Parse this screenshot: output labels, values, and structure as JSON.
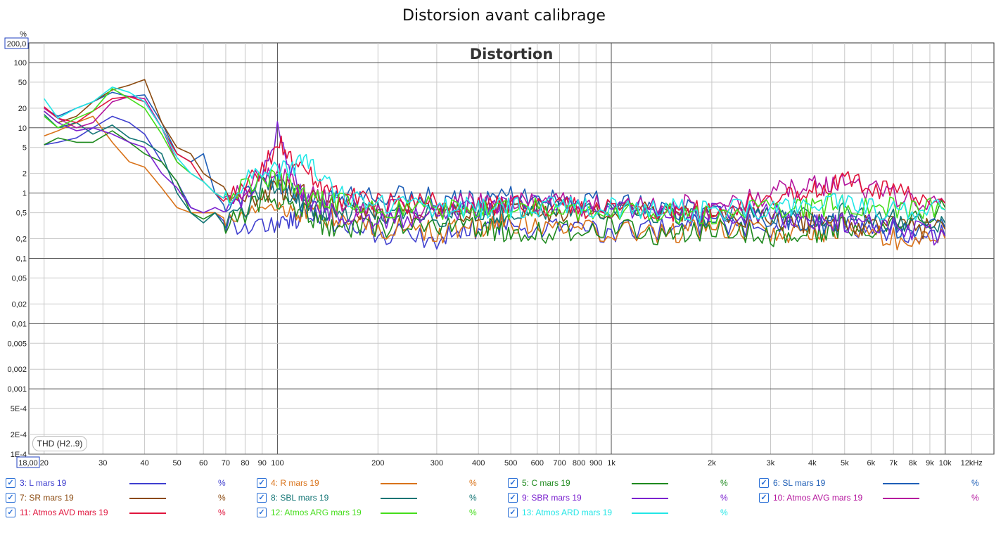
{
  "title": "Distorsion avant calibrage",
  "thd_label": "THD (H2..9)",
  "chart_data": {
    "type": "line",
    "title": "Distortion",
    "xscale": "log",
    "yscale": "log",
    "xlim": [
      18,
      14000
    ],
    "ylim": [
      0.0001,
      200
    ],
    "x_unit_label": "kHz",
    "y_unit_label": "%",
    "y_top_value": "200,0",
    "x_left_value": "18,00",
    "x_ticks": [
      {
        "v": 20,
        "t": "20"
      },
      {
        "v": 30,
        "t": "30"
      },
      {
        "v": 40,
        "t": "40"
      },
      {
        "v": 50,
        "t": "50"
      },
      {
        "v": 60,
        "t": "60"
      },
      {
        "v": 70,
        "t": "70"
      },
      {
        "v": 80,
        "t": "80"
      },
      {
        "v": 90,
        "t": "90"
      },
      {
        "v": 100,
        "t": "100"
      },
      {
        "v": 200,
        "t": "200"
      },
      {
        "v": 300,
        "t": "300"
      },
      {
        "v": 400,
        "t": "400"
      },
      {
        "v": 500,
        "t": "500"
      },
      {
        "v": 600,
        "t": "600"
      },
      {
        "v": 700,
        "t": "700"
      },
      {
        "v": 800,
        "t": "800"
      },
      {
        "v": 900,
        "t": "900"
      },
      {
        "v": 1000,
        "t": "1k"
      },
      {
        "v": 2000,
        "t": "2k"
      },
      {
        "v": 3000,
        "t": "3k"
      },
      {
        "v": 4000,
        "t": "4k"
      },
      {
        "v": 5000,
        "t": "5k"
      },
      {
        "v": 6000,
        "t": "6k"
      },
      {
        "v": 7000,
        "t": "7k"
      },
      {
        "v": 8000,
        "t": "8k"
      },
      {
        "v": 9000,
        "t": "9k"
      },
      {
        "v": 10000,
        "t": "10k"
      },
      {
        "v": 12000,
        "t": "12kHz"
      }
    ],
    "y_ticks": [
      {
        "v": 100,
        "t": "100"
      },
      {
        "v": 50,
        "t": "50"
      },
      {
        "v": 20,
        "t": "20"
      },
      {
        "v": 10,
        "t": "10"
      },
      {
        "v": 5,
        "t": "5"
      },
      {
        "v": 2,
        "t": "2"
      },
      {
        "v": 1,
        "t": "1"
      },
      {
        "v": 0.5,
        "t": "0,5"
      },
      {
        "v": 0.2,
        "t": "0,2"
      },
      {
        "v": 0.1,
        "t": "0,1"
      },
      {
        "v": 0.05,
        "t": "0,05"
      },
      {
        "v": 0.02,
        "t": "0,02"
      },
      {
        "v": 0.01,
        "t": "0,01"
      },
      {
        "v": 0.005,
        "t": "0,005"
      },
      {
        "v": 0.002,
        "t": "0,002"
      },
      {
        "v": 0.001,
        "t": "0,001"
      },
      {
        "v": 0.0005,
        "t": "5E-4"
      },
      {
        "v": 0.0002,
        "t": "2E-4"
      },
      {
        "v": 0.0001,
        "t": "1E-4"
      }
    ],
    "series": [
      {
        "name": "3: L mars 19",
        "color": "#3f3fcf",
        "x": [
          20,
          22,
          25,
          28,
          32,
          36,
          40,
          45,
          50,
          55,
          60,
          65,
          70,
          80,
          90,
          100,
          120,
          150,
          200,
          300,
          400,
          500,
          700,
          1000,
          1500,
          2000,
          3000,
          4000,
          5000,
          7000,
          10000
        ],
        "y": [
          5.5,
          6,
          7,
          10,
          15,
          12,
          8,
          3,
          1.5,
          0.6,
          0.5,
          0.5,
          0.35,
          0.3,
          0.35,
          0.32,
          0.45,
          0.35,
          0.25,
          0.2,
          0.3,
          0.3,
          0.3,
          0.25,
          0.3,
          0.35,
          0.3,
          0.35,
          0.3,
          0.25,
          0.22
        ]
      },
      {
        "name": "4: R mars 19",
        "color": "#d9731a",
        "x": [
          20,
          22,
          25,
          28,
          32,
          36,
          40,
          45,
          50,
          55,
          60,
          65,
          70,
          80,
          90,
          100,
          120,
          150,
          200,
          300,
          400,
          500,
          700,
          1000,
          1500,
          2000,
          3000,
          4000,
          5000,
          7000,
          10000
        ],
        "y": [
          7.5,
          9,
          12,
          15,
          6,
          3,
          2.5,
          1.2,
          0.6,
          0.5,
          0.5,
          0.5,
          0.4,
          0.5,
          0.7,
          0.6,
          0.5,
          0.4,
          0.3,
          0.25,
          0.3,
          0.35,
          0.3,
          0.25,
          0.25,
          0.3,
          0.25,
          0.25,
          0.3,
          0.2,
          0.2
        ]
      },
      {
        "name": "5: C mars 19",
        "color": "#1f8a1f",
        "x": [
          20,
          22,
          25,
          28,
          32,
          36,
          40,
          45,
          50,
          55,
          60,
          65,
          70,
          80,
          90,
          100,
          120,
          150,
          200,
          300,
          400,
          500,
          700,
          1000,
          1500,
          2000,
          3000,
          4000,
          5000,
          7000,
          10000
        ],
        "y": [
          5.5,
          7,
          6,
          6,
          9,
          6,
          4,
          3,
          1.5,
          0.5,
          0.4,
          0.5,
          0.3,
          0.5,
          0.8,
          0.8,
          0.5,
          0.25,
          0.3,
          0.35,
          0.3,
          0.25,
          0.25,
          0.3,
          0.22,
          0.3,
          0.22,
          0.25,
          0.3,
          0.3,
          0.6
        ]
      },
      {
        "name": "6: SL mars 19",
        "color": "#1f5fb7",
        "x": [
          20,
          22,
          25,
          28,
          32,
          36,
          40,
          45,
          50,
          55,
          60,
          65,
          70,
          80,
          90,
          100,
          120,
          150,
          200,
          300,
          400,
          500,
          700,
          1000,
          1500,
          2000,
          3000,
          4000,
          5000,
          7000,
          10000
        ],
        "y": [
          20,
          15,
          20,
          25,
          35,
          30,
          32,
          12,
          4,
          3,
          4,
          1,
          0.6,
          1,
          1.5,
          1.5,
          0.7,
          0.8,
          1,
          0.8,
          0.7,
          0.9,
          0.8,
          0.7,
          0.6,
          0.5,
          0.4,
          0.35,
          0.35,
          0.3,
          0.3
        ]
      },
      {
        "name": "7: SR mars 19",
        "color": "#8b4a10",
        "x": [
          20,
          22,
          25,
          28,
          32,
          36,
          40,
          45,
          50,
          55,
          60,
          65,
          70,
          80,
          90,
          100,
          120,
          150,
          200,
          300,
          400,
          500,
          700,
          1000,
          1500,
          2000,
          3000,
          4000,
          5000,
          7000,
          10000
        ],
        "y": [
          18,
          12,
          15,
          25,
          38,
          45,
          55,
          12,
          5,
          4,
          2,
          1.5,
          1.2,
          0.8,
          0.9,
          1.2,
          1,
          0.6,
          0.5,
          0.5,
          0.5,
          0.6,
          0.5,
          0.55,
          0.5,
          0.45,
          0.4,
          0.35,
          0.35,
          0.3,
          0.28
        ]
      },
      {
        "name": "8: SBL mars 19",
        "color": "#137575",
        "x": [
          20,
          22,
          25,
          28,
          32,
          36,
          40,
          45,
          50,
          55,
          60,
          65,
          70,
          80,
          90,
          100,
          120,
          150,
          200,
          300,
          400,
          500,
          700,
          1000,
          1500,
          2000,
          3000,
          4000,
          5000,
          7000,
          10000
        ],
        "y": [
          16,
          10,
          12,
          8,
          11,
          7,
          6,
          4,
          1,
          0.5,
          0.35,
          0.5,
          0.3,
          0.6,
          1.2,
          1.5,
          0.6,
          0.5,
          0.5,
          0.45,
          0.5,
          0.5,
          0.6,
          0.5,
          0.5,
          0.45,
          0.5,
          0.45,
          0.5,
          0.4,
          0.35
        ]
      },
      {
        "name": "9: SBR mars 19",
        "color": "#7b22cf",
        "x": [
          20,
          22,
          25,
          28,
          32,
          36,
          40,
          45,
          50,
          55,
          60,
          65,
          70,
          80,
          90,
          100,
          120,
          150,
          200,
          300,
          400,
          500,
          700,
          1000,
          1500,
          2000,
          3000,
          4000,
          5000,
          7000,
          10000
        ],
        "y": [
          18,
          12,
          9,
          10,
          8,
          6,
          5,
          2,
          1.2,
          0.6,
          0.5,
          0.6,
          0.5,
          1,
          1.5,
          9,
          0.8,
          0.5,
          0.4,
          0.5,
          0.6,
          0.7,
          0.8,
          0.6,
          0.6,
          0.5,
          0.45,
          0.4,
          0.35,
          0.3,
          0.22
        ]
      },
      {
        "name": "10: Atmos AVG mars 19",
        "color": "#b5179e",
        "x": [
          20,
          22,
          25,
          28,
          32,
          36,
          40,
          45,
          50,
          55,
          60,
          65,
          70,
          80,
          90,
          100,
          120,
          150,
          200,
          300,
          400,
          500,
          700,
          1000,
          1500,
          2000,
          3000,
          4000,
          5000,
          7000,
          10000
        ],
        "y": [
          20,
          14,
          10,
          12,
          25,
          30,
          28,
          10,
          3,
          2,
          1.5,
          1,
          0.8,
          1,
          2,
          2,
          1,
          0.7,
          0.6,
          0.6,
          0.7,
          0.7,
          0.7,
          0.6,
          0.7,
          0.6,
          1,
          1.3,
          1.4,
          0.9,
          0.7
        ]
      },
      {
        "name": "11: Atmos AVD mars 19",
        "color": "#e0143c",
        "x": [
          20,
          22,
          25,
          28,
          32,
          36,
          40,
          45,
          50,
          55,
          60,
          65,
          70,
          80,
          90,
          100,
          120,
          150,
          200,
          300,
          400,
          500,
          700,
          1000,
          1500,
          2000,
          3000,
          4000,
          5000,
          7000,
          10000
        ],
        "y": [
          21,
          14,
          12,
          18,
          28,
          30,
          25,
          10,
          4,
          3,
          1.5,
          1,
          0.7,
          1.5,
          2,
          6,
          2,
          0.9,
          0.7,
          0.7,
          0.6,
          0.7,
          0.6,
          0.6,
          0.55,
          0.5,
          0.9,
          1.2,
          1.5,
          1,
          0.7
        ]
      },
      {
        "name": "12: Atmos ARG mars 19",
        "color": "#44dd1a",
        "x": [
          20,
          22,
          25,
          28,
          32,
          36,
          40,
          45,
          50,
          55,
          60,
          65,
          70,
          80,
          90,
          100,
          120,
          150,
          200,
          300,
          400,
          500,
          700,
          1000,
          1500,
          2000,
          3000,
          4000,
          5000,
          7000,
          10000
        ],
        "y": [
          15,
          10,
          14,
          18,
          40,
          28,
          20,
          8,
          3,
          2,
          1.5,
          1,
          0.8,
          1.3,
          1.5,
          1.8,
          1,
          0.7,
          0.6,
          0.6,
          0.5,
          0.6,
          0.6,
          0.5,
          0.5,
          0.5,
          0.6,
          0.6,
          0.7,
          0.6,
          0.55
        ]
      },
      {
        "name": "13: Atmos ARD mars 19",
        "color": "#22e6e6",
        "x": [
          20,
          22,
          25,
          28,
          32,
          36,
          40,
          45,
          50,
          55,
          60,
          65,
          70,
          80,
          90,
          100,
          120,
          150,
          200,
          300,
          400,
          500,
          700,
          1000,
          1500,
          2000,
          3000,
          4000,
          5000,
          7000,
          10000
        ],
        "y": [
          28,
          14,
          20,
          25,
          42,
          35,
          25,
          10,
          3.5,
          2,
          1.5,
          1,
          0.8,
          1.5,
          2,
          2.2,
          3,
          1,
          0.7,
          0.6,
          0.6,
          0.6,
          0.6,
          0.6,
          0.6,
          0.5,
          0.6,
          0.6,
          0.7,
          0.55,
          0.55
        ]
      }
    ]
  },
  "legend": [
    {
      "label": "3: L mars 19",
      "unit": "%",
      "color": "#3f3fcf",
      "checked": "✓"
    },
    {
      "label": "4: R mars 19",
      "unit": "%",
      "color": "#d9731a",
      "checked": "✓"
    },
    {
      "label": "5: C mars 19",
      "unit": "%",
      "color": "#1f8a1f",
      "checked": "✓"
    },
    {
      "label": "6: SL mars 19",
      "unit": "%",
      "color": "#1f5fb7",
      "checked": "✓"
    },
    {
      "label": "7: SR mars 19",
      "unit": "%",
      "color": "#8b4a10",
      "checked": "✓"
    },
    {
      "label": "8: SBL mars 19",
      "unit": "%",
      "color": "#137575",
      "checked": "✓"
    },
    {
      "label": "9: SBR mars 19",
      "unit": "%",
      "color": "#7b22cf",
      "checked": "✓"
    },
    {
      "label": "10: Atmos AVG mars 19",
      "unit": "%",
      "color": "#b5179e",
      "checked": "✓"
    },
    {
      "label": "11: Atmos AVD mars 19",
      "unit": "%",
      "color": "#e0143c",
      "checked": "✓"
    },
    {
      "label": "12: Atmos ARG mars 19",
      "unit": "%",
      "color": "#44dd1a",
      "checked": "✓"
    },
    {
      "label": "13: Atmos ARD mars 19",
      "unit": "%",
      "color": "#22e6e6",
      "checked": "✓"
    }
  ]
}
